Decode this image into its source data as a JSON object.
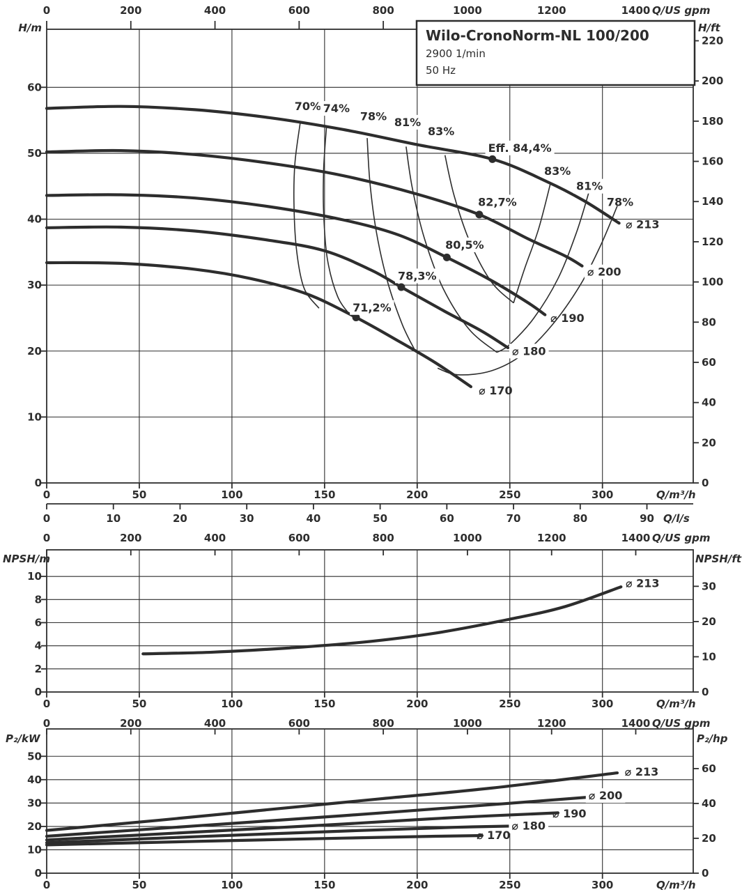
{
  "title_box": {
    "model": "Wilo-CronoNorm-NL 100/200",
    "speed": "2900 1/min",
    "frequency": "50 Hz"
  },
  "colors": {
    "ink": "#2d2d2d",
    "background": "#ffffff",
    "label_box": "#ffffff"
  },
  "chart_data": [
    {
      "id": "head",
      "type": "line",
      "title": "Pump head curves H/Q for impeller diameters",
      "x_axes": [
        {
          "name": "m3h",
          "unit": "Q/m³/h",
          "scale": 1,
          "ticks": [
            0,
            50,
            100,
            150,
            200,
            250,
            300
          ]
        },
        {
          "name": "ls",
          "unit": "Q/l/s",
          "scale": 3.6,
          "ticks": [
            0,
            10,
            20,
            30,
            40,
            50,
            60,
            70,
            80,
            90
          ]
        },
        {
          "name": "gpm",
          "unit": "Q/US gpm",
          "scale": 0.227124,
          "ticks": [
            0,
            200,
            400,
            600,
            800,
            1000,
            1200,
            1400
          ]
        }
      ],
      "y_axes": [
        {
          "name": "m",
          "unit": "H/m",
          "scale": 1,
          "ticks": [
            0,
            10,
            20,
            30,
            40,
            50,
            60
          ],
          "range": [
            0,
            68.8
          ]
        },
        {
          "name": "ft",
          "unit": "H/ft",
          "scale": 0.3048,
          "ticks": [
            0,
            20,
            40,
            60,
            80,
            100,
            120,
            140,
            160,
            180,
            200,
            220
          ]
        }
      ],
      "xlim": [
        0,
        349
      ],
      "grid": true,
      "series": [
        {
          "name": "⌀ 213",
          "points": [
            [
              0,
              56.8
            ],
            [
              40,
              57.1
            ],
            [
              80,
              56.6
            ],
            [
              120,
              55.4
            ],
            [
              160,
              53.6
            ],
            [
              200,
              51.3
            ],
            [
              240.6,
              49.1
            ],
            [
              270,
              45.7
            ],
            [
              290,
              42.8
            ],
            [
              309,
              39.4
            ]
          ]
        },
        {
          "name": "⌀ 200",
          "points": [
            [
              0,
              50.2
            ],
            [
              40,
              50.4
            ],
            [
              80,
              49.8
            ],
            [
              120,
              48.5
            ],
            [
              160,
              46.6
            ],
            [
              200,
              43.8
            ],
            [
              233.5,
              40.7
            ],
            [
              260,
              37.0
            ],
            [
              280,
              34.4
            ],
            [
              289,
              32.9
            ]
          ]
        },
        {
          "name": "⌀ 190",
          "points": [
            [
              0,
              43.6
            ],
            [
              40,
              43.7
            ],
            [
              80,
              43.2
            ],
            [
              120,
              41.9
            ],
            [
              160,
              39.9
            ],
            [
              190,
              37.6
            ],
            [
              216,
              34.2
            ],
            [
              240,
              30.7
            ],
            [
              260,
              27.3
            ],
            [
              269,
              25.5
            ]
          ]
        },
        {
          "name": "⌀ 180",
          "points": [
            [
              0,
              38.7
            ],
            [
              40,
              38.8
            ],
            [
              80,
              38.2
            ],
            [
              120,
              36.8
            ],
            [
              150,
              35.2
            ],
            [
              175,
              32.3
            ],
            [
              191.4,
              29.7
            ],
            [
              215,
              26.0
            ],
            [
              235,
              23.0
            ],
            [
              249,
              20.5
            ]
          ]
        },
        {
          "name": "⌀ 170",
          "points": [
            [
              0,
              33.4
            ],
            [
              40,
              33.3
            ],
            [
              80,
              32.4
            ],
            [
              110,
              31.0
            ],
            [
              140,
              28.7
            ],
            [
              167,
              25.1
            ],
            [
              190,
              21.5
            ],
            [
              210,
              18.2
            ],
            [
              229,
              14.6
            ]
          ]
        }
      ],
      "contours": [
        {
          "name": "eff-70-left",
          "points": [
            [
              137,
              54.9
            ],
            [
              134,
              48.5
            ],
            [
              133.5,
              42
            ],
            [
              135,
              35
            ],
            [
              139,
              29.5
            ],
            [
              147,
              26.5
            ]
          ]
        },
        {
          "name": "eff-74-left",
          "points": [
            [
              151,
              53.9
            ],
            [
              149.5,
              47.5
            ],
            [
              149.5,
              41
            ],
            [
              151.5,
              34
            ],
            [
              157,
              28.3
            ],
            [
              164,
              25.4
            ]
          ]
        },
        {
          "name": "eff-78-left",
          "points": [
            [
              173,
              52.3
            ],
            [
              174.5,
              45.5
            ],
            [
              178,
              38
            ],
            [
              184,
              30.5
            ],
            [
              192,
              24
            ],
            [
              199,
              20.0
            ]
          ]
        },
        {
          "name": "eff-81-left",
          "points": [
            [
              194,
              51.0
            ],
            [
              197.5,
              44.5
            ],
            [
              204,
              37
            ],
            [
              214,
              29.5
            ],
            [
              228,
              23.3
            ],
            [
              243,
              19.8
            ]
          ]
        },
        {
          "name": "eff-83-left",
          "points": [
            [
              215,
              49.7
            ],
            [
              220,
              43.5
            ],
            [
              228.5,
              36.5
            ],
            [
              240,
              30.5
            ],
            [
              252,
              27.3
            ]
          ]
        },
        {
          "name": "eff-83-right",
          "points": [
            [
              272,
              45.5
            ],
            [
              265.5,
              38.5
            ],
            [
              258,
              32.5
            ],
            [
              252,
              27.3
            ]
          ]
        },
        {
          "name": "eff-81-right",
          "points": [
            [
              293,
              44.4
            ],
            [
              286,
              38
            ],
            [
              276,
              31
            ],
            [
              263,
              25
            ],
            [
              250,
              21
            ],
            [
              243,
              19.8
            ]
          ]
        },
        {
          "name": "eff-78-right",
          "points": [
            [
              308,
              42.0
            ],
            [
              299,
              36
            ],
            [
              288,
              30
            ],
            [
              273,
              24
            ],
            [
              257,
              19.5
            ],
            [
              240,
              17
            ],
            [
              222,
              16.4
            ],
            [
              211,
              17.4
            ]
          ]
        }
      ],
      "annotations": [
        {
          "text": "70%",
          "q": 141.0,
          "v": 57.1,
          "anchor": "middle",
          "box": false
        },
        {
          "text": "74%",
          "q": 156.4,
          "v": 56.8,
          "anchor": "middle",
          "box": true
        },
        {
          "text": "78%",
          "q": 176.4,
          "v": 55.6,
          "anchor": "middle",
          "box": false
        },
        {
          "text": "81%",
          "q": 194.8,
          "v": 54.7,
          "anchor": "middle",
          "box": true
        },
        {
          "text": "83%",
          "q": 212.9,
          "v": 53.3,
          "anchor": "middle",
          "box": false
        },
        {
          "text": "Eff.  84,4%",
          "q": 255.4,
          "v": 50.8,
          "anchor": "middle",
          "box": true,
          "dot": [
            240.6,
            49.1
          ]
        },
        {
          "text": "83%",
          "q": 275.7,
          "v": 47.3,
          "anchor": "middle",
          "box": false
        },
        {
          "text": "81%",
          "q": 293.0,
          "v": 45.0,
          "anchor": "middle",
          "box": true
        },
        {
          "text": "78%",
          "q": 309.5,
          "v": 42.6,
          "anchor": "middle",
          "box": false
        },
        {
          "text": "82,7%",
          "q": 243.3,
          "v": 42.6,
          "anchor": "middle",
          "box": true,
          "dot": [
            233.5,
            40.7
          ]
        },
        {
          "text": "80,5%",
          "q": 225.6,
          "v": 36.1,
          "anchor": "middle",
          "box": true,
          "dot": [
            216.0,
            34.2
          ]
        },
        {
          "text": "78,3%",
          "q": 200.0,
          "v": 31.4,
          "anchor": "middle",
          "box": true,
          "dot": [
            191.4,
            29.7
          ]
        },
        {
          "text": "71,2%",
          "q": 175.6,
          "v": 26.6,
          "anchor": "middle",
          "box": true,
          "dot": [
            167.0,
            25.1
          ]
        },
        {
          "text": "⌀ 213",
          "q": 312.5,
          "v": 39.2,
          "anchor": "start",
          "box": false
        },
        {
          "text": "⌀ 200",
          "q": 291.8,
          "v": 32.0,
          "anchor": "start",
          "box": true
        },
        {
          "text": "⌀ 190",
          "q": 271.9,
          "v": 25.0,
          "anchor": "start",
          "box": false
        },
        {
          "text": "⌀ 180",
          "q": 251.2,
          "v": 20.0,
          "anchor": "start",
          "box": true
        },
        {
          "text": "⌀ 170",
          "q": 233.2,
          "v": 14.0,
          "anchor": "start",
          "box": false
        }
      ]
    },
    {
      "id": "npsh",
      "type": "line",
      "title": "NPSH curve",
      "x_axes": [
        {
          "name": "m3h",
          "unit": "Q/m³/h",
          "scale": 1,
          "ticks": [
            0,
            50,
            100,
            150,
            200,
            250,
            300
          ]
        },
        {
          "name": "gpm",
          "unit": "Q/US gpm",
          "scale": 0.227124,
          "ticks": [
            0,
            200,
            400,
            600,
            800,
            1000,
            1200,
            1400
          ]
        }
      ],
      "y_axes": [
        {
          "name": "m",
          "unit": "NPSH/m",
          "scale": 1,
          "ticks": [
            0,
            2,
            4,
            6,
            8,
            10
          ],
          "range": [
            0,
            12.3
          ]
        },
        {
          "name": "ft",
          "unit": "NPSH/ft",
          "scale": 0.3048,
          "ticks": [
            0,
            10,
            20,
            30
          ]
        }
      ],
      "xlim": [
        0,
        349
      ],
      "grid": true,
      "series": [
        {
          "name": "⌀ 213",
          "points": [
            [
              52,
              3.3
            ],
            [
              90,
              3.45
            ],
            [
              130,
              3.8
            ],
            [
              170,
              4.3
            ],
            [
              210,
              5.1
            ],
            [
              250,
              6.3
            ],
            [
              280,
              7.4
            ],
            [
              310,
              9.1
            ]
          ]
        }
      ],
      "contours": [],
      "annotations": [
        {
          "text": "⌀ 213",
          "q": 312.5,
          "v": 9.4,
          "anchor": "start",
          "box": false
        }
      ]
    },
    {
      "id": "p2",
      "type": "line",
      "title": "Shaft power curves P2/Q",
      "x_axes": [
        {
          "name": "m3h",
          "unit": "Q/m³/h",
          "scale": 1,
          "ticks": [
            0,
            50,
            100,
            150,
            200,
            250,
            300
          ]
        },
        {
          "name": "gpm",
          "unit": "Q/US gpm",
          "scale": 0.227124,
          "ticks": [
            0,
            200,
            400,
            600,
            800,
            1000,
            1200,
            1400
          ]
        }
      ],
      "y_axes": [
        {
          "name": "kW",
          "unit": "P₂/kW",
          "scale": 1,
          "ticks": [
            0,
            10,
            20,
            30,
            40,
            50
          ],
          "range": [
            0,
            61.7
          ]
        },
        {
          "name": "hp",
          "unit": "P₂/hp",
          "scale": 0.7457,
          "ticks": [
            0,
            20,
            40,
            60
          ]
        }
      ],
      "xlim": [
        0,
        349
      ],
      "grid": true,
      "series": [
        {
          "name": "⌀ 213",
          "points": [
            [
              0,
              18.3
            ],
            [
              60,
              22.6
            ],
            [
              120,
              27.2
            ],
            [
              180,
              31.8
            ],
            [
              240,
              36.4
            ],
            [
              308,
              42.9
            ]
          ]
        },
        {
          "name": "⌀ 200",
          "points": [
            [
              0,
              15.8
            ],
            [
              80,
              20.2
            ],
            [
              160,
              24.6
            ],
            [
              240,
              29.3
            ],
            [
              297,
              32.8
            ]
          ]
        },
        {
          "name": "⌀ 190",
          "points": [
            [
              0,
              14.2
            ],
            [
              80,
              17.6
            ],
            [
              160,
              21.0
            ],
            [
              220,
              23.8
            ],
            [
              276,
              25.8
            ]
          ]
        },
        {
          "name": "⌀ 180",
          "points": [
            [
              0,
              13.0
            ],
            [
              80,
              15.6
            ],
            [
              160,
              18.0
            ],
            [
              220,
              19.6
            ],
            [
              266,
              20.4
            ]
          ]
        },
        {
          "name": "⌀ 170",
          "points": [
            [
              0,
              12.1
            ],
            [
              80,
              13.6
            ],
            [
              160,
              15.0
            ],
            [
              210,
              15.8
            ],
            [
              235,
              16.1
            ]
          ]
        }
      ],
      "contours": [],
      "annotations": [
        {
          "text": "⌀ 213",
          "q": 312.0,
          "v": 43.3,
          "anchor": "start",
          "box": false
        },
        {
          "text": "⌀ 200",
          "q": 292.5,
          "v": 33.2,
          "anchor": "start",
          "box": true
        },
        {
          "text": "⌀ 190",
          "q": 273.0,
          "v": 25.5,
          "anchor": "start",
          "box": false
        },
        {
          "text": "⌀ 180",
          "q": 251.0,
          "v": 20.2,
          "anchor": "start",
          "box": true
        },
        {
          "text": "⌀ 170",
          "q": 232.0,
          "v": 16.2,
          "anchor": "start",
          "box": false
        }
      ]
    }
  ]
}
